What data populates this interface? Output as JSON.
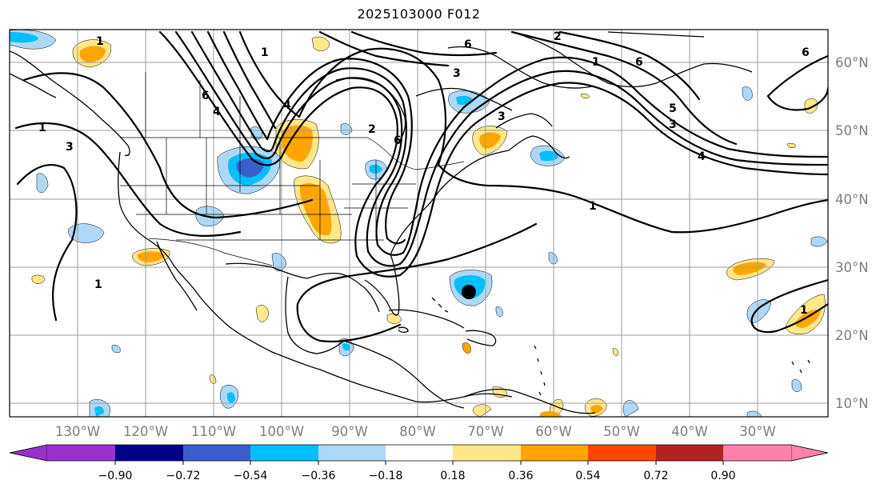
{
  "title": "2025103000 F012",
  "lon_labels": [
    "130°W",
    "120°W",
    "110°W",
    "100°W",
    "90°W",
    "80°W",
    "70°W",
    "60°W",
    "50°W",
    "40°W",
    "30°W"
  ],
  "lat_labels": [
    "60°N",
    "50°N",
    "40°N",
    "30°N",
    "20°N",
    "10°N"
  ],
  "contour_labels": [
    "1",
    "2",
    "3",
    "4",
    "5",
    "6"
  ],
  "colorbar": {
    "ticks": [
      "−0.90",
      "−0.72",
      "−0.54",
      "−0.36",
      "−0.18",
      "0.18",
      "0.36",
      "0.54",
      "0.72",
      "0.90"
    ],
    "colors": [
      "#9932cc",
      "#00008b",
      "#3a5fcd",
      "#00bfff",
      "#add8f7",
      "#ffffff",
      "#ffe88a",
      "#ffa500",
      "#ff4500",
      "#b22222",
      "#ff82ab"
    ]
  },
  "marker": "storm-center"
}
